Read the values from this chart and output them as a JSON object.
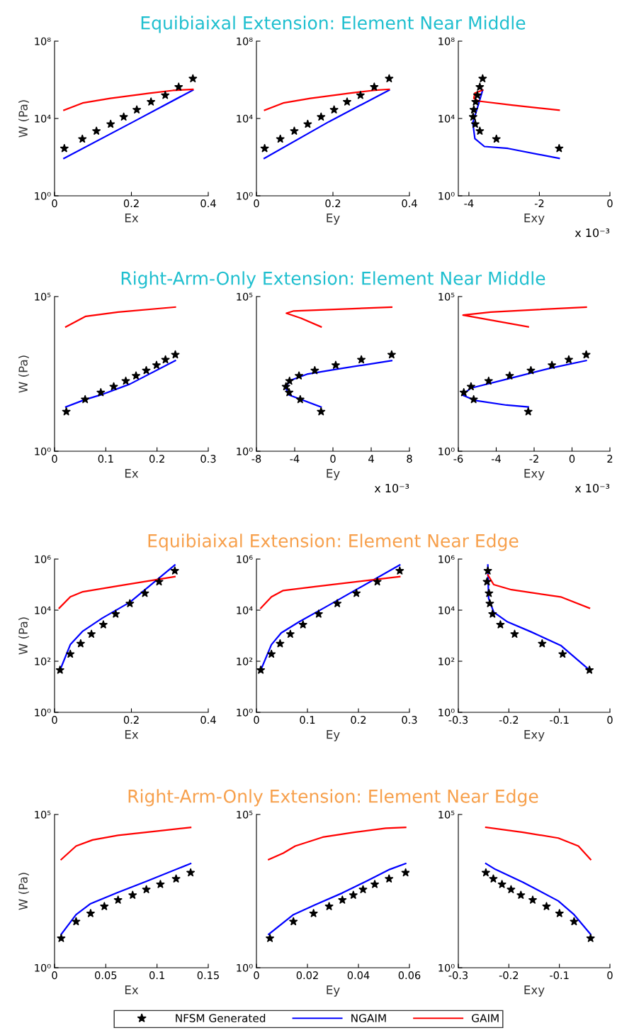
{
  "chart_data": [
    {
      "type": "line",
      "xlabel": "Ex",
      "ylabel": "W (Pa)",
      "log": "y",
      "legend": "bottom",
      "xlim": [
        0,
        0.4
      ],
      "xticks": [
        0,
        0.2,
        0.4
      ],
      "ylim": [
        1,
        100000000
      ],
      "yticks": [
        {
          "value": 1,
          "label": "10⁰"
        },
        {
          "value": 10000,
          "label": "10⁴"
        },
        {
          "value": 100000000,
          "label": "10⁸"
        }
      ],
      "series": [
        {
          "name": "NFSM Generated",
          "type": "scatter",
          "marker": "star",
          "color": "#000000",
          "x": [
            0.0255,
            0.0724,
            0.109,
            0.146,
            0.18,
            0.214,
            0.251,
            0.288,
            0.323,
            0.36
          ],
          "values": [
            282,
            871,
            2239,
            5130,
            12000,
            28200,
            72400,
            158000,
            427000,
            1150000
          ]
        },
        {
          "name": "NGAIM",
          "color": "#0000ff",
          "x": [
            0.0245,
            0.206,
            0.36
          ],
          "values": [
            87,
            6900,
            295000
          ]
        },
        {
          "name": "GAIM",
          "color": "#ff0000",
          "x": [
            0.0245,
            0.073,
            0.145,
            0.247,
            0.308,
            0.36
          ],
          "values": [
            26900,
            63000,
            110000,
            204000,
            282000,
            324000
          ]
        }
      ]
    },
    {
      "type": "line",
      "title": "Equibiaixal Extension: Element Near Middle",
      "xlabel": "Ey",
      "log": "y",
      "xlim": [
        0,
        0.4
      ],
      "xticks": [
        0,
        0.2,
        0.4
      ],
      "ylim": [
        1,
        100000000
      ],
      "yticks": [
        {
          "value": 1,
          "label": "10⁰"
        },
        {
          "value": 10000,
          "label": "10⁴"
        },
        {
          "value": 100000000,
          "label": "10⁸"
        }
      ],
      "series": [
        {
          "type": "scatter",
          "marker": "star",
          "color": "#000000",
          "x": [
            0.0215,
            0.0624,
            0.099,
            0.134,
            0.169,
            0.203,
            0.237,
            0.272,
            0.308,
            0.347
          ],
          "values": [
            282,
            871,
            2239,
            5130,
            12000,
            28200,
            72400,
            158000,
            427000,
            1150000
          ]
        },
        {
          "color": "#0000ff",
          "x": [
            0.0205,
            0.19,
            0.347
          ],
          "values": [
            87,
            6900,
            295000
          ]
        },
        {
          "color": "#ff0000",
          "x": [
            0.0215,
            0.07,
            0.141,
            0.243,
            0.305,
            0.347
          ],
          "values": [
            26900,
            63000,
            110000,
            204000,
            282000,
            324000
          ]
        }
      ]
    },
    {
      "type": "line",
      "xlabel": "Exy",
      "log": "y",
      "xlim": [
        -4.3,
        0
      ],
      "xticks": [
        -4,
        -2,
        0
      ],
      "ylim": [
        1,
        100000000
      ],
      "yticks": [
        {
          "value": 1,
          "label": "10⁰"
        },
        {
          "value": 10000,
          "label": "10⁴"
        },
        {
          "value": 100000000,
          "label": "10⁸"
        }
      ],
      "annotations": [
        "x 10⁻³"
      ],
      "series": [
        {
          "type": "scatter",
          "marker": "star",
          "color": "#000000",
          "x": [
            -3.61,
            -3.69,
            -3.76,
            -3.81,
            -3.86,
            -3.88,
            -3.82,
            -3.69,
            -3.22,
            -1.44
          ],
          "values": [
            1150000,
            427000,
            158000,
            72400,
            28200,
            12000,
            5130,
            2239,
            871,
            282
          ]
        },
        {
          "color": "#0000ff",
          "x": [
            -3.61,
            -3.72,
            -3.89,
            -3.83,
            -3.56,
            -2.89,
            -1.44
          ],
          "values": [
            295000,
            60000,
            6000,
            912,
            355,
            282,
            87
          ]
        },
        {
          "color": "#ff0000",
          "x": [
            -3.61,
            -3.83,
            -3.86,
            -3.72,
            -2.78,
            -1.44
          ],
          "values": [
            295000,
            204000,
            110000,
            79400,
            49000,
            26900
          ]
        }
      ]
    },
    {
      "type": "line",
      "xlabel": "Ex",
      "ylabel": "W (Pa)",
      "log": "y",
      "xlim": [
        0,
        0.3
      ],
      "xticks": [
        0,
        0.1,
        0.2,
        0.3
      ],
      "ylim": [
        1,
        100000
      ],
      "yticks": [
        {
          "value": 1,
          "label": "10⁰"
        },
        {
          "value": 100000,
          "label": "10⁵"
        }
      ],
      "series": [
        {
          "type": "scatter",
          "marker": "star",
          "color": "#000000",
          "x": [
            0.023,
            0.0597,
            0.0903,
            0.1155,
            0.139,
            0.159,
            0.179,
            0.199,
            0.2165,
            0.2357
          ],
          "values": [
            19,
            47,
            79,
            123,
            186,
            275,
            407,
            603,
            912,
            1320
          ]
        },
        {
          "color": "#0000ff",
          "x": [
            0.022,
            0.06,
            0.09,
            0.147,
            0.2357
          ],
          "values": [
            27,
            47,
            66,
            148,
            851
          ]
        },
        {
          "color": "#ff0000",
          "x": [
            0.022,
            0.061,
            0.124,
            0.2357
          ],
          "values": [
            10500,
            23000,
            31600,
            45700
          ]
        }
      ]
    },
    {
      "type": "line",
      "title": "Right-Arm-Only Extension: Element Near Middle",
      "xlabel": "Ey",
      "log": "y",
      "xlim": [
        -8,
        8
      ],
      "xticks": [
        -8,
        -4,
        0,
        4,
        8
      ],
      "ylim": [
        1,
        100000
      ],
      "yticks": [
        {
          "value": 1,
          "label": "10⁰"
        },
        {
          "value": 100000,
          "label": "10⁵"
        }
      ],
      "annotations": [
        "x 10⁻³"
      ],
      "series": [
        {
          "type": "scatter",
          "marker": "star",
          "color": "#000000",
          "x": [
            -1.24,
            -3.42,
            -4.58,
            -4.91,
            -4.54,
            -3.55,
            -1.9,
            0.29,
            2.97,
            6.14
          ],
          "values": [
            19,
            47,
            79,
            123,
            186,
            275,
            407,
            603,
            912,
            1320
          ]
        },
        {
          "color": "#0000ff",
          "x": [
            -1.24,
            -4.58,
            -4.99,
            -4.37,
            -2.72,
            0.16,
            6.14
          ],
          "values": [
            27,
            66,
            120,
            200,
            309,
            437,
            851
          ]
        },
        {
          "color": "#ff0000",
          "x": [
            -1.24,
            -3.34,
            -4.87,
            -4.16,
            6.14
          ],
          "values": [
            10500,
            20000,
            29000,
            33900,
            45700
          ]
        }
      ]
    },
    {
      "type": "line",
      "xlabel": "Exy",
      "log": "y",
      "xlim": [
        -6,
        2
      ],
      "xticks": [
        -6,
        -4,
        -2,
        0,
        2
      ],
      "ylim": [
        1,
        100000
      ],
      "yticks": [
        {
          "value": 1,
          "label": "10⁰"
        },
        {
          "value": 100000,
          "label": "10⁵"
        }
      ],
      "annotations": [
        "x 10⁻³"
      ],
      "series": [
        {
          "type": "scatter",
          "marker": "star",
          "color": "#000000",
          "x": [
            -2.31,
            -5.19,
            -5.71,
            -5.33,
            -4.4,
            -3.29,
            -2.17,
            -1.06,
            -0.17,
            0.75
          ],
          "values": [
            19,
            47,
            79,
            123,
            186,
            275,
            407,
            603,
            912,
            1320
          ]
        },
        {
          "color": "#0000ff",
          "x": [
            -2.31,
            -3.46,
            -5.13,
            -5.79,
            -5.33,
            -3.25,
            -1.17,
            0.75
          ],
          "values": [
            27,
            31,
            44,
            66,
            110,
            229,
            479,
            851
          ]
        },
        {
          "color": "#ff0000",
          "x": [
            -2.31,
            -5.75,
            -4.29,
            0.75
          ],
          "values": [
            10500,
            25100,
            31600,
            45700
          ]
        }
      ]
    },
    {
      "type": "line",
      "xlabel": "Ex",
      "ylabel": "W (Pa)",
      "log": "y",
      "xlim": [
        0,
        0.4
      ],
      "xticks": [
        0,
        0.2,
        0.4
      ],
      "ylim": [
        1,
        1000000
      ],
      "yticks": [
        {
          "value": 1,
          "label": "10⁰"
        },
        {
          "value": 100,
          "label": "10²"
        },
        {
          "value": 10000,
          "label": "10⁴"
        },
        {
          "value": 1000000,
          "label": "10⁶"
        }
      ],
      "series": [
        {
          "type": "scatter",
          "marker": "star",
          "color": "#000000",
          "x": [
            0.0143,
            0.041,
            0.068,
            0.096,
            0.127,
            0.159,
            0.196,
            0.235,
            0.272,
            0.313
          ],
          "values": [
            45,
            191,
            490,
            1150,
            2690,
            7080,
            18200,
            45700,
            129000,
            347000
          ]
        },
        {
          "color": "#0000ff",
          "x": [
            0.0143,
            0.041,
            0.0735,
            0.1245,
            0.196,
            0.313
          ],
          "values": [
            45,
            447,
            1510,
            4900,
            20400,
            589000
          ]
        },
        {
          "color": "#ff0000",
          "x": [
            0.0122,
            0.041,
            0.0735,
            0.165,
            0.313
          ],
          "values": [
            12000,
            33100,
            52500,
            89100,
            204000
          ]
        }
      ]
    },
    {
      "type": "line",
      "title": "Equibiaixal Extension: Element Near Edge",
      "xlabel": "Ey",
      "log": "y",
      "xlim": [
        0,
        0.3
      ],
      "xticks": [
        0,
        0.1,
        0.2,
        0.3
      ],
      "ylim": [
        1,
        1000000
      ],
      "yticks": [
        {
          "value": 1,
          "label": "10⁰"
        },
        {
          "value": 100,
          "label": "10²"
        },
        {
          "value": 10000,
          "label": "10⁴"
        },
        {
          "value": 1000000,
          "label": "10⁶"
        }
      ],
      "series": [
        {
          "type": "scatter",
          "marker": "star",
          "color": "#000000",
          "x": [
            0.0085,
            0.0294,
            0.0464,
            0.0665,
            0.0913,
            0.122,
            0.1585,
            0.196,
            0.237,
            0.281
          ],
          "values": [
            45,
            191,
            490,
            1150,
            2690,
            7080,
            18200,
            45700,
            129000,
            347000
          ]
        },
        {
          "color": "#0000ff",
          "x": [
            0.0085,
            0.0294,
            0.0487,
            0.0835,
            0.138,
            0.281
          ],
          "values": [
            45,
            447,
            1290,
            3470,
            14100,
            589000
          ]
        },
        {
          "color": "#ff0000",
          "x": [
            0.0085,
            0.0294,
            0.0526,
            0.1145,
            0.281
          ],
          "values": [
            12000,
            33100,
            58900,
            83200,
            204000
          ]
        }
      ]
    },
    {
      "type": "line",
      "xlabel": "Exy",
      "log": "y",
      "xlim": [
        -0.3,
        0
      ],
      "xticks": [
        -0.3,
        -0.2,
        -0.1,
        0
      ],
      "ylim": [
        1,
        1000000
      ],
      "yticks": [
        {
          "value": 1,
          "label": "10⁰"
        },
        {
          "value": 100,
          "label": "10²"
        },
        {
          "value": 10000,
          "label": "10⁴"
        },
        {
          "value": 1000000,
          "label": "10⁶"
        }
      ],
      "series": [
        {
          "type": "scatter",
          "marker": "star",
          "color": "#000000",
          "x": [
            -0.0405,
            -0.0935,
            -0.1341,
            -0.1886,
            -0.2167,
            -0.2323,
            -0.2377,
            -0.2393,
            -0.2432,
            -0.2416
          ],
          "values": [
            45,
            191,
            490,
            1150,
            2690,
            7080,
            18200,
            45700,
            129000,
            347000
          ]
        },
        {
          "color": "#0000ff",
          "x": [
            -0.0405,
            -0.0974,
            -0.1559,
            -0.2026,
            -0.2299,
            -0.2401,
            -0.2416
          ],
          "values": [
            45,
            417,
            1410,
            3470,
            8320,
            28800,
            589000
          ]
        },
        {
          "color": "#ff0000",
          "x": [
            -0.0405,
            -0.0974,
            -0.1949,
            -0.23,
            -0.2416
          ],
          "values": [
            12000,
            33100,
            63100,
            100000,
            240000
          ]
        }
      ]
    },
    {
      "type": "line",
      "xlabel": "Ex",
      "ylabel": "W (Pa)",
      "log": "y",
      "xlim": [
        0,
        0.15
      ],
      "xticks": [
        0,
        0.05,
        0.1,
        0.15
      ],
      "ylim": [
        1,
        100000
      ],
      "yticks": [
        {
          "value": 1,
          "label": "10⁰"
        },
        {
          "value": 100000,
          "label": "10⁵"
        }
      ],
      "series": [
        {
          "type": "scatter",
          "marker": "star",
          "color": "#000000",
          "x": [
            0.0065,
            0.021,
            0.0352,
            0.0486,
            0.062,
            0.0762,
            0.0896,
            0.1033,
            0.1186,
            0.1328
          ],
          "values": [
            9.1,
            32,
            59,
            100,
            162,
            234,
            355,
            525,
            794,
            1260
          ]
        },
        {
          "color": "#0000ff",
          "x": [
            0.0065,
            0.021,
            0.0352,
            0.062,
            0.0896,
            0.1328
          ],
          "values": [
            12.3,
            54,
            123,
            288,
            661,
            2510
          ]
        },
        {
          "color": "#ff0000",
          "x": [
            0.0065,
            0.021,
            0.0371,
            0.062,
            0.1003,
            0.1328
          ],
          "values": [
            3390,
            9330,
            14800,
            20900,
            28800,
            38000
          ]
        }
      ]
    },
    {
      "type": "line",
      "title": "Right-Arm-Only Extension: Element Near Edge",
      "xlabel": "Ey",
      "log": "y",
      "xlim": [
        0,
        0.06
      ],
      "xticks": [
        0,
        0.02,
        0.04,
        0.06
      ],
      "ylim": [
        1,
        100000
      ],
      "yticks": [
        {
          "value": 1,
          "label": "10⁰"
        },
        {
          "value": 100000,
          "label": "10⁵"
        }
      ],
      "series": [
        {
          "type": "scatter",
          "marker": "star",
          "color": "#000000",
          "x": [
            0.0053,
            0.0145,
            0.0224,
            0.0285,
            0.0337,
            0.038,
            0.0418,
            0.0464,
            0.052,
            0.0585
          ],
          "values": [
            9.1,
            32,
            59,
            100,
            162,
            234,
            355,
            525,
            794,
            1260
          ]
        },
        {
          "color": "#0000ff",
          "x": [
            0.0048,
            0.0145,
            0.0229,
            0.0337,
            0.043,
            0.0523,
            0.0585
          ],
          "values": [
            12.3,
            54,
            112,
            275,
            661,
            1620,
            2510
          ]
        },
        {
          "color": "#ff0000",
          "x": [
            0.0048,
            0.0105,
            0.0152,
            0.026,
            0.0383,
            0.0507,
            0.0585
          ],
          "values": [
            3390,
            5500,
            9330,
            18200,
            26300,
            35500,
            38000
          ]
        }
      ]
    },
    {
      "type": "line",
      "xlabel": "Exy",
      "log": "y",
      "xlim": [
        -0.3,
        0
      ],
      "xticks": [
        -0.3,
        -0.2,
        -0.1,
        0
      ],
      "ylim": [
        1,
        100000
      ],
      "yticks": [
        {
          "value": 1,
          "label": "10⁰"
        },
        {
          "value": 100000,
          "label": "10⁵"
        }
      ],
      "series": [
        {
          "type": "scatter",
          "marker": "star",
          "color": "#000000",
          "x": [
            -0.2455,
            -0.2307,
            -0.2136,
            -0.1957,
            -0.1762,
            -0.1528,
            -0.1255,
            -0.0998,
            -0.0709,
            -0.0382
          ],
          "values": [
            1260,
            794,
            525,
            355,
            234,
            162,
            100,
            59,
            32,
            9.1
          ]
        },
        {
          "color": "#0000ff",
          "x": [
            -0.2455,
            -0.2267,
            -0.1722,
            -0.1021,
            -0.0709,
            -0.0382
          ],
          "values": [
            2510,
            1620,
            617,
            151,
            54,
            12.3
          ]
        },
        {
          "color": "#ff0000",
          "x": [
            -0.2455,
            -0.1722,
            -0.1021,
            -0.0624,
            -0.0382
          ],
          "values": [
            38000,
            26300,
            17000,
            9330,
            3390
          ]
        }
      ]
    }
  ]
}
